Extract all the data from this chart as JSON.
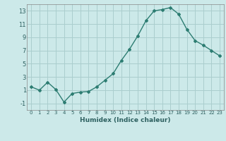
{
  "x": [
    0,
    1,
    2,
    3,
    4,
    5,
    6,
    7,
    8,
    9,
    10,
    11,
    12,
    13,
    14,
    15,
    16,
    17,
    18,
    19,
    20,
    21,
    22,
    23
  ],
  "y": [
    1.5,
    1.0,
    2.2,
    1.1,
    -0.8,
    0.5,
    0.7,
    0.8,
    1.5,
    2.5,
    3.5,
    5.5,
    7.2,
    9.2,
    11.5,
    13.0,
    13.2,
    13.5,
    12.5,
    10.2,
    8.5,
    7.8,
    7.0,
    6.2
  ],
  "xlabel": "Humidex (Indice chaleur)",
  "background_color": "#cce9e9",
  "line_color": "#2d7d72",
  "grid_color": "#aacece",
  "ylim": [
    -2,
    14
  ],
  "yticks": [
    -1,
    1,
    3,
    5,
    7,
    9,
    11,
    13
  ],
  "xticks": [
    0,
    1,
    2,
    3,
    4,
    5,
    6,
    7,
    8,
    9,
    10,
    11,
    12,
    13,
    14,
    15,
    16,
    17,
    18,
    19,
    20,
    21,
    22,
    23
  ]
}
